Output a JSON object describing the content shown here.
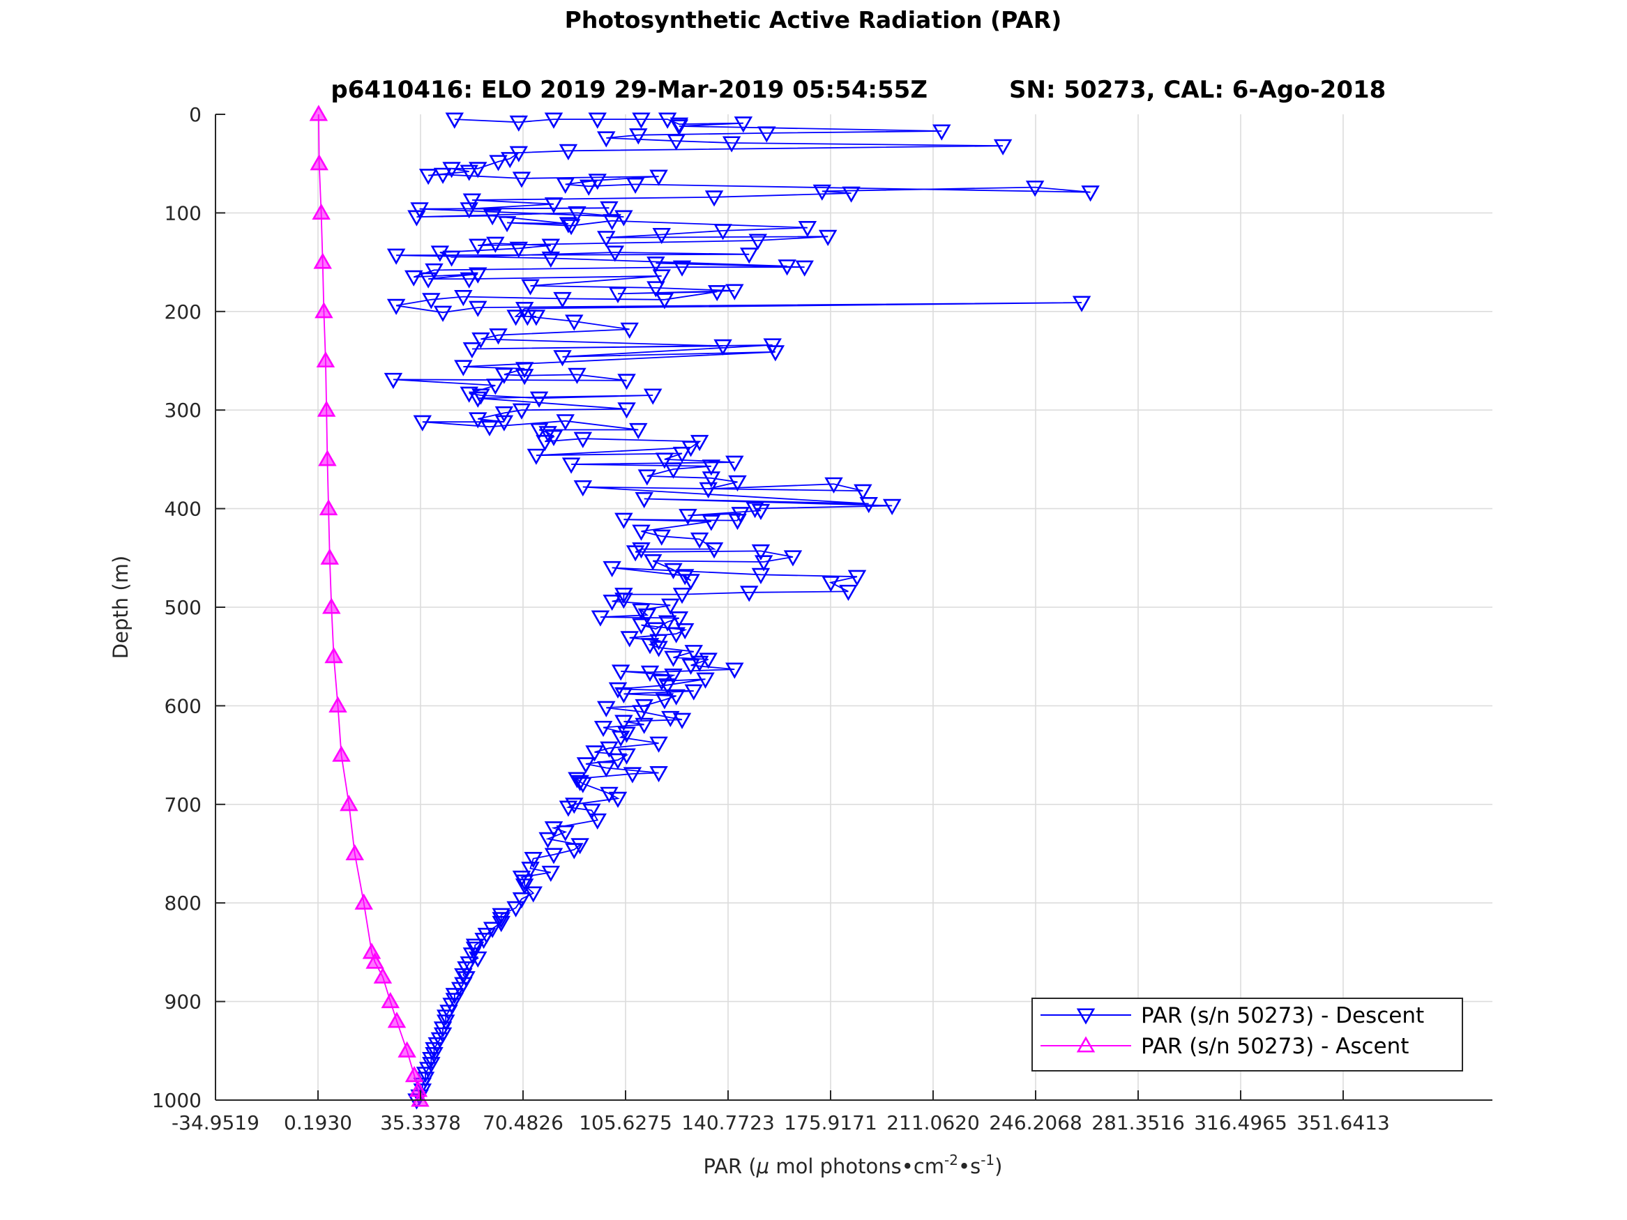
{
  "chart_data": {
    "type": "line",
    "title": "Photosynthetic Active Radiation (PAR)",
    "subtitle_left": "p6410416: ELO 2019 29-Mar-2019 05:54:55Z",
    "subtitle_right": "SN: 50273, CAL: 6-Ago-2018",
    "xlabel": "PAR (μ mol photons•cm^-2•s^-1)",
    "xlabel_parts": {
      "prefix": "PAR (",
      "mu": "μ",
      "middle": " mol photons•cm",
      "sup1": "-2",
      "dot": "•s",
      "sup2": "-1",
      "suffix": ")"
    },
    "ylabel": "Depth (m)",
    "xlim": [
      -34.9519,
      386.7858
    ],
    "ylim": [
      0,
      1000
    ],
    "y_reversed": true,
    "xticks": [
      -34.9519,
      0.193,
      35.3378,
      70.4826,
      105.6275,
      140.7723,
      175.9171,
      211.062,
      246.2068,
      281.3516,
      316.4965,
      351.6413
    ],
    "xtick_labels": [
      "-34.9519",
      "0.1930",
      "35.3378",
      "70.4826",
      "105.6275",
      "140.7723",
      "175.9171",
      "211.0620",
      "246.2068",
      "281.3516",
      "316.4965",
      "351.6413"
    ],
    "yticks": [
      0,
      100,
      200,
      300,
      400,
      500,
      600,
      700,
      800,
      900,
      1000
    ],
    "ytick_labels": [
      "0",
      "100",
      "200",
      "300",
      "400",
      "500",
      "600",
      "700",
      "800",
      "900",
      "1000"
    ],
    "grid": true,
    "legend_location": "bottom-right",
    "series": [
      {
        "name": "PAR (s/n 50273) - Descent",
        "color": "#0000ff",
        "marker": "triangle-down",
        "points": [
          [
            47,
            5
          ],
          [
            69,
            8
          ],
          [
            81,
            5
          ],
          [
            96,
            5
          ],
          [
            111,
            5
          ],
          [
            120,
            5
          ],
          [
            124,
            10
          ],
          [
            146,
            9
          ],
          [
            124,
            12
          ],
          [
            214,
            17
          ],
          [
            154,
            19
          ],
          [
            110,
            21
          ],
          [
            99,
            24
          ],
          [
            123,
            27
          ],
          [
            142,
            29
          ],
          [
            235,
            32
          ],
          [
            86,
            37
          ],
          [
            69,
            39
          ],
          [
            66,
            45
          ],
          [
            62,
            48
          ],
          [
            55,
            55
          ],
          [
            46,
            55
          ],
          [
            52,
            58
          ],
          [
            38,
            62
          ],
          [
            43,
            61
          ],
          [
            70,
            65
          ],
          [
            117,
            63
          ],
          [
            96,
            67
          ],
          [
            85,
            71
          ],
          [
            93,
            73
          ],
          [
            109,
            71
          ],
          [
            265,
            79
          ],
          [
            246,
            74
          ],
          [
            173,
            78
          ],
          [
            183,
            80
          ],
          [
            136,
            84
          ],
          [
            53,
            87
          ],
          [
            81,
            91
          ],
          [
            52,
            96
          ],
          [
            100,
            95
          ],
          [
            35,
            96
          ],
          [
            105,
            104
          ],
          [
            89,
            100
          ],
          [
            34,
            104
          ],
          [
            60,
            103
          ],
          [
            86,
            111
          ],
          [
            65,
            110
          ],
          [
            87,
            113
          ],
          [
            101,
            108
          ],
          [
            168,
            115
          ],
          [
            139,
            118
          ],
          [
            118,
            122
          ],
          [
            99,
            125
          ],
          [
            175,
            124
          ],
          [
            151,
            128
          ],
          [
            55,
            133
          ],
          [
            61,
            131
          ],
          [
            80,
            133
          ],
          [
            69,
            136
          ],
          [
            42,
            140
          ],
          [
            46,
            145
          ],
          [
            102,
            140
          ],
          [
            148,
            142
          ],
          [
            27,
            143
          ],
          [
            80,
            146
          ],
          [
            161,
            154
          ],
          [
            116,
            151
          ],
          [
            167,
            155
          ],
          [
            125,
            155
          ],
          [
            40,
            158
          ],
          [
            33,
            165
          ],
          [
            55,
            162
          ],
          [
            38,
            167
          ],
          [
            52,
            167
          ],
          [
            118,
            164
          ],
          [
            73,
            174
          ],
          [
            116,
            176
          ],
          [
            143,
            179
          ],
          [
            103,
            182
          ],
          [
            137,
            180
          ],
          [
            119,
            188
          ],
          [
            84,
            187
          ],
          [
            50,
            185
          ],
          [
            39,
            188
          ],
          [
            27,
            194
          ],
          [
            43,
            201
          ],
          [
            55,
            196
          ],
          [
            262,
            191
          ],
          [
            71,
            197
          ],
          [
            68,
            205
          ],
          [
            75,
            205
          ],
          [
            72,
            205
          ],
          [
            88,
            210
          ],
          [
            107,
            218
          ],
          [
            62,
            224
          ],
          [
            56,
            228
          ],
          [
            139,
            235
          ],
          [
            53,
            238
          ],
          [
            156,
            234
          ],
          [
            84,
            246
          ],
          [
            157,
            241
          ],
          [
            50,
            256
          ],
          [
            71,
            258
          ],
          [
            64,
            264
          ],
          [
            71,
            265
          ],
          [
            89,
            264
          ],
          [
            106,
            270
          ],
          [
            26,
            269
          ],
          [
            61,
            275
          ],
          [
            52,
            283
          ],
          [
            56,
            285
          ],
          [
            76,
            288
          ],
          [
            115,
            285
          ],
          [
            55,
            288
          ],
          [
            106,
            299
          ],
          [
            70,
            300
          ],
          [
            64,
            303
          ],
          [
            55,
            309
          ],
          [
            64,
            312
          ],
          [
            36,
            312
          ],
          [
            59,
            317
          ],
          [
            85,
            311
          ],
          [
            110,
            320
          ],
          [
            76,
            320
          ],
          [
            79,
            323
          ],
          [
            81,
            327
          ],
          [
            78,
            332
          ],
          [
            91,
            329
          ],
          [
            131,
            332
          ],
          [
            128,
            338
          ],
          [
            75,
            346
          ],
          [
            125,
            344
          ],
          [
            119,
            350
          ],
          [
            143,
            353
          ],
          [
            87,
            355
          ],
          [
            135,
            357
          ],
          [
            122,
            360
          ],
          [
            113,
            367
          ],
          [
            135,
            369
          ],
          [
            144,
            373
          ],
          [
            134,
            380
          ],
          [
            177,
            375
          ],
          [
            187,
            382
          ],
          [
            91,
            378
          ],
          [
            189,
            395
          ],
          [
            112,
            390
          ],
          [
            197,
            397
          ],
          [
            150,
            400
          ],
          [
            152,
            402
          ],
          [
            127,
            407
          ],
          [
            145,
            405
          ],
          [
            144,
            412
          ],
          [
            105,
            411
          ],
          [
            135,
            413
          ],
          [
            111,
            423
          ],
          [
            118,
            428
          ],
          [
            131,
            431
          ],
          [
            136,
            441
          ],
          [
            111,
            441
          ],
          [
            109,
            444
          ],
          [
            152,
            443
          ],
          [
            163,
            449
          ],
          [
            153,
            454
          ],
          [
            115,
            453
          ],
          [
            122,
            462
          ],
          [
            128,
            473
          ],
          [
            126,
            468
          ],
          [
            101,
            460
          ],
          [
            152,
            467
          ],
          [
            185,
            469
          ],
          [
            176,
            475
          ],
          [
            182,
            484
          ],
          [
            148,
            485
          ],
          [
            125,
            487
          ],
          [
            105,
            487
          ],
          [
            105,
            492
          ],
          [
            101,
            494
          ],
          [
            121,
            498
          ],
          [
            111,
            503
          ],
          [
            113,
            508
          ],
          [
            97,
            510
          ],
          [
            124,
            511
          ],
          [
            120,
            515
          ],
          [
            116,
            522
          ],
          [
            111,
            518
          ],
          [
            126,
            523
          ],
          [
            123,
            527
          ],
          [
            107,
            531
          ],
          [
            117,
            534
          ],
          [
            114,
            538
          ],
          [
            117,
            541
          ],
          [
            129,
            545
          ],
          [
            122,
            551
          ],
          [
            134,
            553
          ],
          [
            131,
            556
          ],
          [
            128,
            559
          ],
          [
            143,
            563
          ],
          [
            114,
            566
          ],
          [
            104,
            565
          ],
          [
            122,
            569
          ],
          [
            118,
            575
          ],
          [
            133,
            573
          ],
          [
            120,
            579
          ],
          [
            103,
            583
          ],
          [
            129,
            585
          ],
          [
            105,
            588
          ],
          [
            123,
            590
          ],
          [
            119,
            594
          ],
          [
            112,
            600
          ],
          [
            99,
            602
          ],
          [
            111,
            606
          ],
          [
            121,
            612
          ],
          [
            125,
            614
          ],
          [
            105,
            616
          ],
          [
            112,
            619
          ],
          [
            98,
            622
          ],
          [
            106,
            628
          ],
          [
            104,
            632
          ],
          [
            117,
            638
          ],
          [
            100,
            643
          ],
          [
            95,
            647
          ],
          [
            106,
            650
          ],
          [
            103,
            655
          ],
          [
            92,
            659
          ],
          [
            99,
            663
          ],
          [
            117,
            668
          ],
          [
            108,
            669
          ],
          [
            89,
            674
          ],
          [
            90,
            677
          ],
          [
            91,
            679
          ],
          [
            100,
            689
          ],
          [
            103,
            694
          ],
          [
            88,
            700
          ],
          [
            86,
            703
          ],
          [
            94,
            706
          ],
          [
            96,
            716
          ],
          [
            81,
            724
          ],
          [
            85,
            728
          ],
          [
            79,
            735
          ],
          [
            90,
            741
          ],
          [
            88,
            746
          ],
          [
            81,
            751
          ],
          [
            74,
            755
          ],
          [
            73,
            765
          ],
          [
            80,
            769
          ],
          [
            70,
            774
          ],
          [
            71,
            778
          ],
          [
            71,
            782
          ],
          [
            74,
            790
          ],
          [
            70,
            796
          ],
          [
            68,
            805
          ],
          [
            63,
            812
          ],
          [
            63,
            816
          ],
          [
            63,
            820
          ],
          [
            60,
            826
          ],
          [
            58,
            832
          ],
          [
            57,
            837
          ],
          [
            54,
            843
          ],
          [
            54,
            846
          ],
          [
            53,
            852
          ],
          [
            55,
            856
          ],
          [
            52,
            861
          ],
          [
            51,
            866
          ],
          [
            50,
            873
          ],
          [
            51,
            876
          ],
          [
            50,
            882
          ],
          [
            49,
            887
          ],
          [
            47,
            893
          ],
          [
            47,
            898
          ],
          [
            46,
            903
          ],
          [
            45,
            910
          ],
          [
            44,
            915
          ],
          [
            44,
            920
          ],
          [
            43,
            927
          ],
          [
            43,
            933
          ],
          [
            42,
            938
          ],
          [
            41,
            943
          ],
          [
            40,
            948
          ],
          [
            40,
            953
          ],
          [
            39,
            958
          ],
          [
            39,
            963
          ],
          [
            38,
            968
          ],
          [
            37,
            973
          ],
          [
            37,
            978
          ],
          [
            36,
            984
          ],
          [
            36,
            990
          ],
          [
            35,
            996
          ],
          [
            34,
            1000
          ]
        ]
      },
      {
        "name": "PAR (s/n 50273) - Ascent",
        "color": "#ff00ff",
        "marker": "triangle-up",
        "points": [
          [
            0.4,
            0
          ],
          [
            0.6,
            50
          ],
          [
            1.3,
            100
          ],
          [
            1.8,
            150
          ],
          [
            2.2,
            200
          ],
          [
            2.8,
            250
          ],
          [
            3.1,
            300
          ],
          [
            3.4,
            350
          ],
          [
            3.8,
            400
          ],
          [
            4.2,
            450
          ],
          [
            4.8,
            500
          ],
          [
            5.6,
            550
          ],
          [
            7.0,
            600
          ],
          [
            8.2,
            650
          ],
          [
            10.8,
            700
          ],
          [
            12.8,
            750
          ],
          [
            15.9,
            800
          ],
          [
            18.6,
            850
          ],
          [
            19.7,
            860
          ],
          [
            22.4,
            875
          ],
          [
            25.0,
            900
          ],
          [
            27.2,
            920
          ],
          [
            30.7,
            950
          ],
          [
            33.2,
            975
          ],
          [
            34.6,
            990
          ],
          [
            35.2,
            1000
          ]
        ]
      }
    ]
  }
}
